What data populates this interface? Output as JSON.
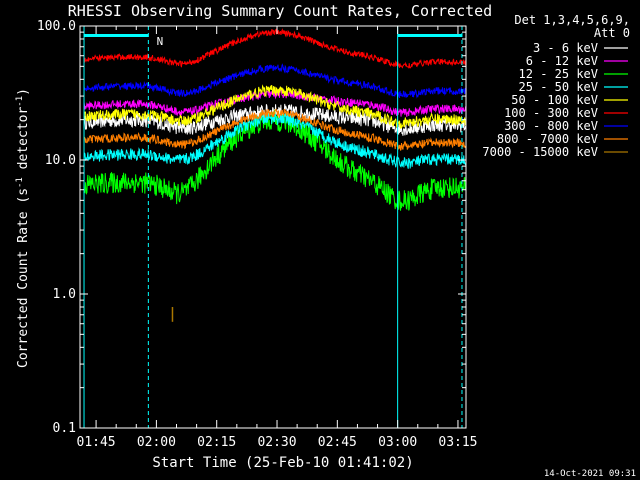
{
  "chart_data": {
    "type": "line",
    "title": "RHESSI Observing Summary Count Rates, Corrected",
    "xlabel": "Start Time (25-Feb-10 01:41:02)",
    "ylabel_main": "Corrected Count Rate (s",
    "ylabel_sup": "-1",
    "ylabel_tail": " detector",
    "ylabel_close": ")",
    "yscale": "log",
    "ylim": [
      0.1,
      100
    ],
    "y_ticks": [
      {
        "value": 0.1,
        "label": "0.1"
      },
      {
        "value": 1,
        "label": "1.0"
      },
      {
        "value": 10,
        "label": "10.0"
      },
      {
        "value": 100,
        "label": "100.0"
      }
    ],
    "xlim_minutes": [
      101,
      197
    ],
    "x_ticks": [
      {
        "minute": 105,
        "label": "01:45"
      },
      {
        "minute": 120,
        "label": "02:00"
      },
      {
        "minute": 135,
        "label": "02:15"
      },
      {
        "minute": 150,
        "label": "02:30"
      },
      {
        "minute": 165,
        "label": "02:45"
      },
      {
        "minute": 180,
        "label": "03:00"
      },
      {
        "minute": 195,
        "label": "03:15"
      }
    ],
    "legend": {
      "placement": "top-right, outside plot",
      "header_line1": "Det 1,3,4,5,6,9,",
      "header_line2": "Att 0"
    },
    "series": [
      {
        "name": "3 - 6 keV",
        "color": "#ffffff",
        "base": 19,
        "peak": 24,
        "noise": 0.12
      },
      {
        "name": "6 - 12 keV",
        "color": "#ff00ff",
        "base": 25,
        "peak": 32,
        "noise": 0.07
      },
      {
        "name": "12 - 25 keV",
        "color": "#00ff00",
        "base": 6.5,
        "peak": 20,
        "noise": 0.18
      },
      {
        "name": "25 - 50 keV",
        "color": "#00ffff",
        "base": 10.5,
        "peak": 21,
        "noise": 0.1
      },
      {
        "name": "50 - 100 keV",
        "color": "#ffff00",
        "base": 21,
        "peak": 34,
        "noise": 0.09
      },
      {
        "name": "100 - 300 keV",
        "color": "#ff0000",
        "base": 56,
        "peak": 92,
        "noise": 0.05
      },
      {
        "name": "300 - 800 keV",
        "color": "#0000ff",
        "base": 34,
        "peak": 50,
        "noise": 0.06
      },
      {
        "name": "800 - 7000 keV",
        "color": "#ff7f00",
        "base": 14,
        "peak": 23,
        "noise": 0.07
      },
      {
        "name": "7000 - 15000 keV",
        "color": "#aa7700",
        "base": null,
        "peak": null,
        "noise": 0
      }
    ],
    "brown_segment": {
      "minute": 124,
      "y_from": 0.62,
      "y_to": 0.8
    },
    "peak_minute": 149,
    "data_gaps": [
      [
        101,
        102
      ],
      [
        197,
        197
      ]
    ],
    "flag_bars": [
      {
        "from": 102,
        "to": 118,
        "y": 85
      },
      {
        "from": 180,
        "to": 196,
        "y": 85
      }
    ],
    "flag_label": {
      "text": "N",
      "minute": 119.3
    },
    "vertical_lines": [
      {
        "minute": 102,
        "style": "solid"
      },
      {
        "minute": 118,
        "style": "dashed"
      },
      {
        "minute": 180,
        "style": "solid"
      },
      {
        "minute": 196,
        "style": "dashed"
      }
    ],
    "accent_color": "#00ffff"
  },
  "footer": {
    "timestamp": "14-Oct-2021 09:31"
  }
}
